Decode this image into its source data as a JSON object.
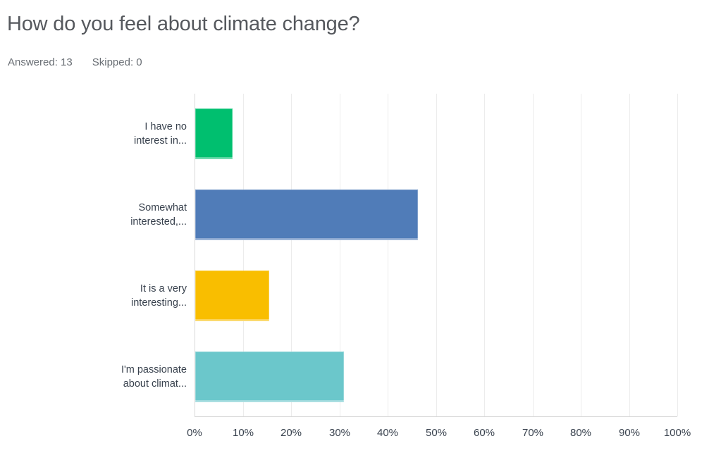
{
  "header": {
    "title": "How do you feel about climate change?",
    "answered_label": "Answered:",
    "answered_value": "13",
    "skipped_label": "Skipped:",
    "skipped_value": "0"
  },
  "chart_data": {
    "type": "bar",
    "orientation": "horizontal",
    "title": "How do you feel about climate change?",
    "categories": [
      "I have no interest in...",
      "Somewhat interested,...",
      "It is a very interesting...",
      "I'm passionate about climat..."
    ],
    "category_lines": [
      [
        "I have no",
        "interest in..."
      ],
      [
        "Somewhat",
        "interested,..."
      ],
      [
        "It is a very",
        "interesting..."
      ],
      [
        "I'm passionate",
        "about climat..."
      ]
    ],
    "values_percent": [
      7.69,
      46.15,
      15.38,
      30.77
    ],
    "answered_total": 13,
    "skipped_total": 0,
    "bar_colors": [
      "#00bf6f",
      "#507cb8",
      "#f9be00",
      "#6bc7cb"
    ],
    "xlabel": "",
    "ylabel": "",
    "xlim": [
      0,
      100
    ],
    "tick_labels": [
      "0%",
      "10%",
      "20%",
      "30%",
      "40%",
      "50%",
      "60%",
      "70%",
      "80%",
      "90%",
      "100%"
    ],
    "grid": "vertical-only",
    "legend": "none",
    "colors": {
      "gridline": "#ececec",
      "axis_line": "#d8d8d8",
      "axis_text": "#39424e",
      "title_text": "#55585d",
      "stats_text": "#696e74"
    }
  }
}
